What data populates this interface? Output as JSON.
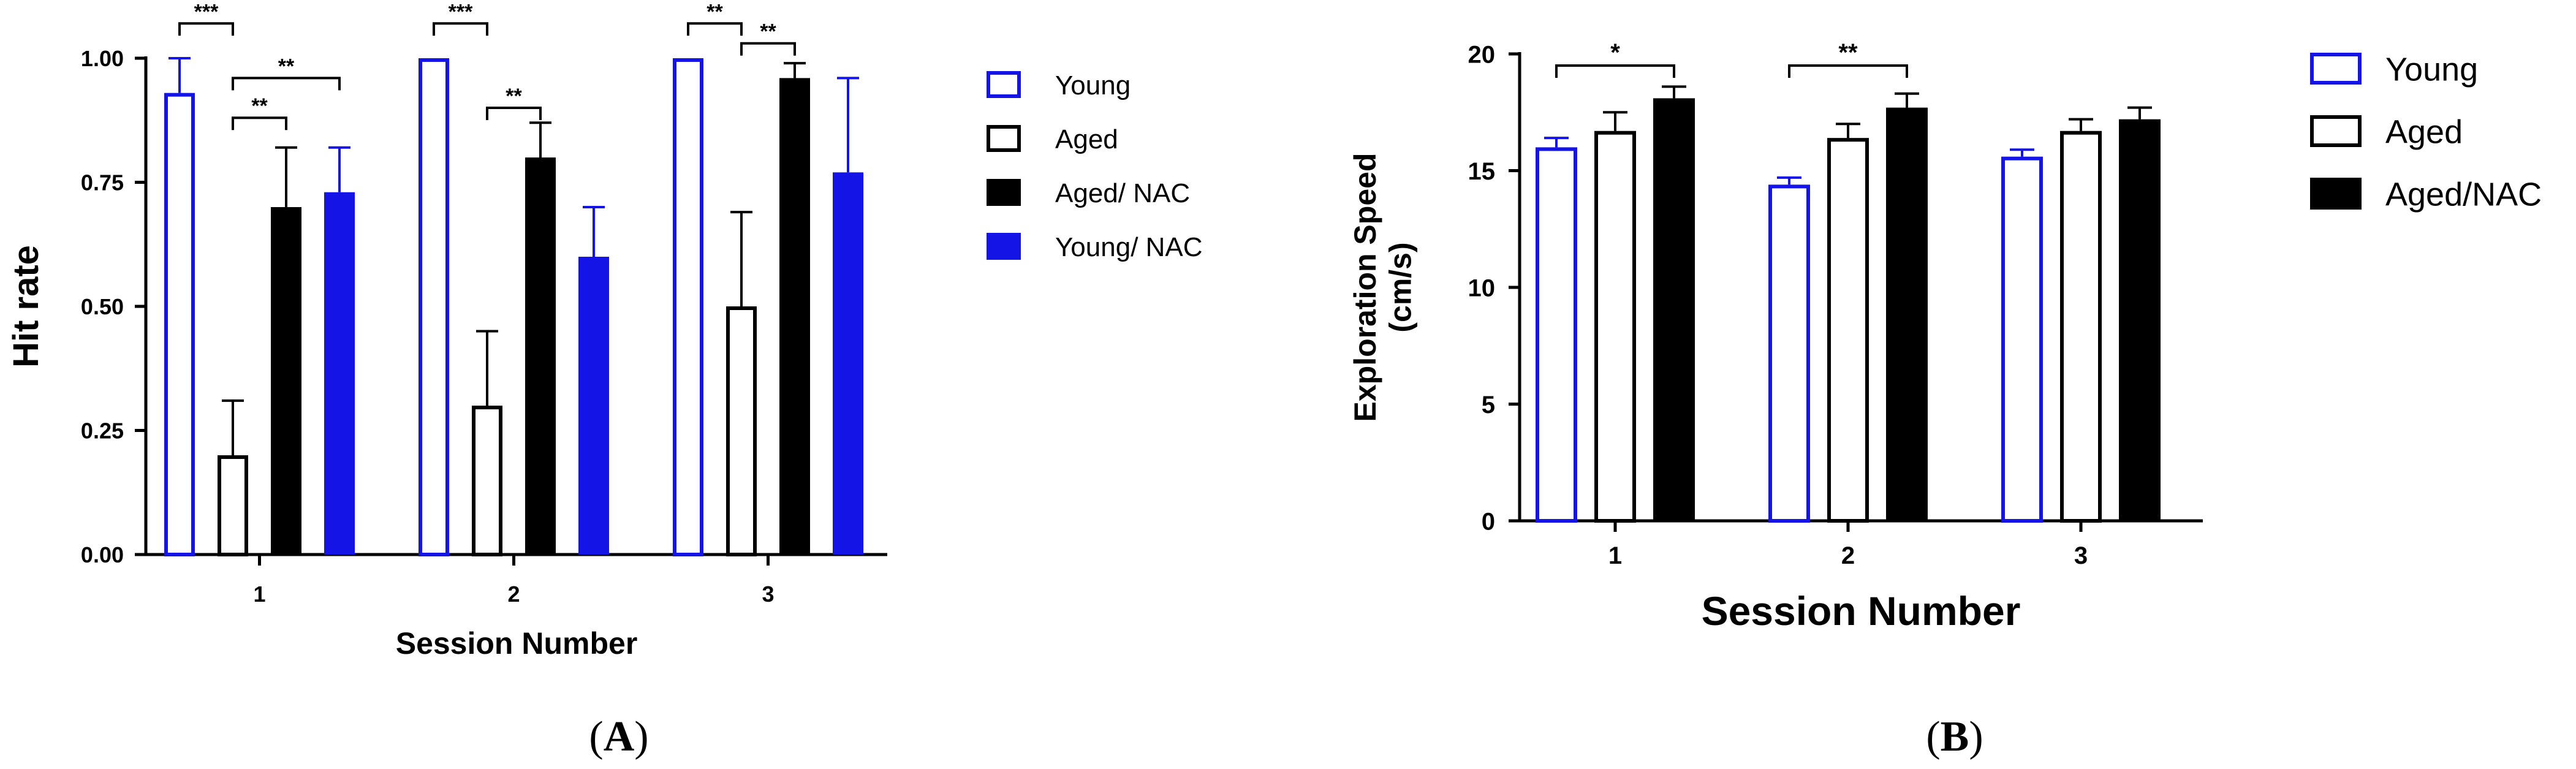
{
  "chart_data": [
    {
      "panel": "(A)",
      "panel_open": "(",
      "panel_letter": "A",
      "panel_close": ")",
      "type": "bar",
      "xlabel": "Session Number",
      "ylabel": "Hit rate",
      "ylim": [
        0,
        1
      ],
      "yticks": [
        0,
        0.25,
        0.5,
        0.75,
        1
      ],
      "ytick_labels": [
        "0.00",
        "0.25",
        "0.50",
        "0.75",
        "1.00"
      ],
      "categories": [
        "1",
        "2",
        "3"
      ],
      "series": [
        {
          "name": "Young",
          "style": "outline",
          "color": "#1414e6",
          "values": [
            0.93,
            1.0,
            1.0
          ],
          "errors": [
            0.07,
            0,
            0
          ]
        },
        {
          "name": "Aged",
          "style": "outline",
          "color": "#000000",
          "values": [
            0.2,
            0.3,
            0.5
          ],
          "errors": [
            0.11,
            0.15,
            0.19
          ]
        },
        {
          "name": "Aged/ NAC",
          "style": "filled",
          "color": "#000000",
          "values": [
            0.7,
            0.8,
            0.96
          ],
          "errors": [
            0.12,
            0.07,
            0.03
          ]
        },
        {
          "name": "Young/ NAC",
          "style": "filled",
          "color": "#1414e6",
          "values": [
            0.73,
            0.6,
            0.77
          ],
          "errors": [
            0.09,
            0.1,
            0.19
          ]
        }
      ],
      "significance": [
        {
          "category": 0,
          "from": 0,
          "to": 1,
          "label": "***",
          "y": 1.07
        },
        {
          "category": 0,
          "from": 1,
          "to": 2,
          "label": "**",
          "y": 0.88
        },
        {
          "category": 0,
          "from": 1,
          "to": 3,
          "label": "**",
          "y": 0.96
        },
        {
          "category": 1,
          "from": 0,
          "to": 1,
          "label": "***",
          "y": 1.07
        },
        {
          "category": 1,
          "from": 1,
          "to": 2,
          "label": "**",
          "y": 0.9
        },
        {
          "category": 2,
          "from": 0,
          "to": 1,
          "label": "**",
          "y": 1.07
        },
        {
          "category": 2,
          "from": 1,
          "to": 2,
          "label": "**",
          "y": 1.03
        }
      ]
    },
    {
      "panel": "(B)",
      "panel_open": "(",
      "panel_letter": "B",
      "panel_close": ")",
      "type": "bar",
      "xlabel": "Session Number",
      "ylabel": "Exploration Speed",
      "ylabel2": "(cm/s)",
      "ylim": [
        0,
        20
      ],
      "yticks": [
        0,
        5,
        10,
        15,
        20
      ],
      "ytick_labels": [
        "0",
        "5",
        "10",
        "15",
        "20"
      ],
      "categories": [
        "1",
        "2",
        "3"
      ],
      "series": [
        {
          "name": "Young",
          "style": "outline",
          "color": "#1414e6",
          "values": [
            16.0,
            14.4,
            15.6
          ],
          "errors": [
            0.4,
            0.3,
            0.3
          ]
        },
        {
          "name": "Aged",
          "style": "outline",
          "color": "#000000",
          "values": [
            16.7,
            16.4,
            16.7
          ],
          "errors": [
            0.8,
            0.6,
            0.5
          ]
        },
        {
          "name": "Aged/NAC",
          "style": "filled",
          "color": "#000000",
          "values": [
            18.1,
            17.7,
            17.2
          ],
          "errors": [
            0.5,
            0.6,
            0.5
          ]
        }
      ],
      "significance": [
        {
          "category": 0,
          "from": 0,
          "to": 2,
          "label": "*",
          "y": 19.5
        },
        {
          "category": 1,
          "from": 0,
          "to": 2,
          "label": "**",
          "y": 19.5
        }
      ]
    }
  ]
}
